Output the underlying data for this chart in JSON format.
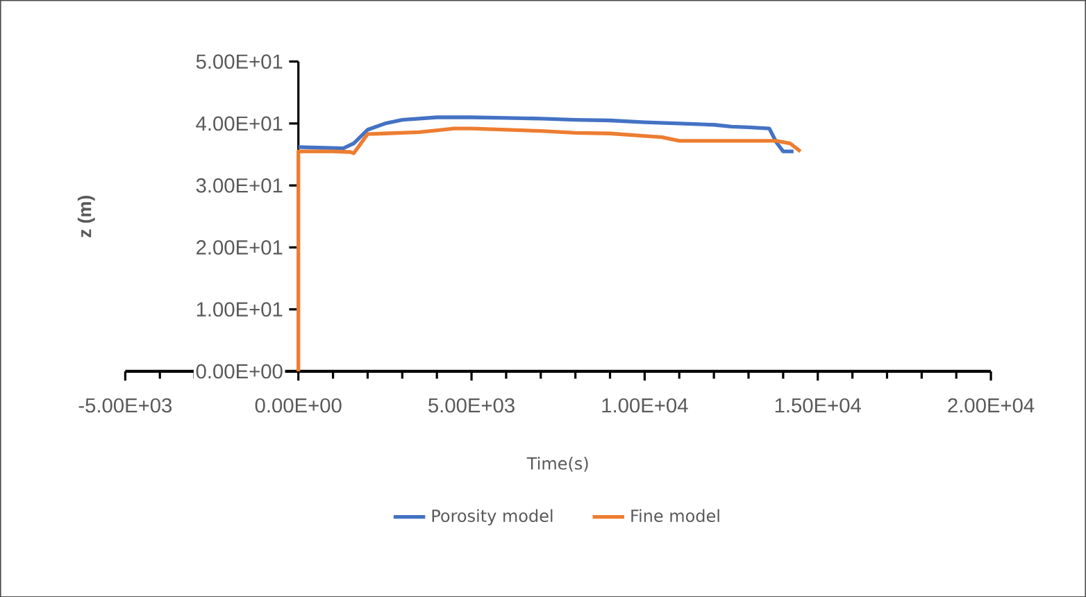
{
  "chart_data": {
    "type": "line",
    "xlabel": "Time(s)",
    "ylabel": "z (m)",
    "xlim": [
      -5000,
      20000
    ],
    "ylim": [
      0,
      50
    ],
    "xticks": [
      {
        "value": -5000,
        "label": "-5.00E+03"
      },
      {
        "value": 0,
        "label": "0.00E+00"
      },
      {
        "value": 5000,
        "label": "5.00E+03"
      },
      {
        "value": 10000,
        "label": "1.00E+04"
      },
      {
        "value": 15000,
        "label": "1.50E+04"
      },
      {
        "value": 20000,
        "label": "2.00E+04"
      }
    ],
    "yticks": [
      {
        "value": 0,
        "label": "0.00E+00"
      },
      {
        "value": 10,
        "label": "1.00E+01"
      },
      {
        "value": 20,
        "label": "2.00E+01"
      },
      {
        "value": 30,
        "label": "3.00E+01"
      },
      {
        "value": 40,
        "label": "4.00E+01"
      },
      {
        "value": 50,
        "label": "5.00E+01"
      }
    ],
    "legend": "bottom",
    "grid": false,
    "marker": "none",
    "line_style": "solid",
    "series": [
      {
        "name": "Porosity model",
        "color": "#4472c4",
        "x": [
          0,
          600,
          1300,
          1600,
          2000,
          2500,
          3000,
          4000,
          5000,
          6000,
          7000,
          8000,
          9000,
          10000,
          11000,
          12000,
          12500,
          13000,
          13600,
          13800,
          14000,
          14300
        ],
        "values": [
          36.2,
          36.1,
          36,
          36.8,
          39,
          40,
          40.6,
          41,
          41,
          40.9,
          40.8,
          40.6,
          40.5,
          40.2,
          40,
          39.8,
          39.5,
          39.4,
          39.2,
          37,
          35.5,
          35.5
        ]
      },
      {
        "name": "Fine model",
        "color": "#ed7d31",
        "x": [
          0,
          0,
          1000,
          1500,
          1600,
          2000,
          2500,
          3500,
          4500,
          5000,
          6000,
          7000,
          8000,
          9000,
          10000,
          10500,
          11000,
          12000,
          13000,
          13800,
          14200,
          14500
        ],
        "values": [
          0,
          35.5,
          35.5,
          35.4,
          35.2,
          38.3,
          38.4,
          38.6,
          39.2,
          39.2,
          39,
          38.8,
          38.5,
          38.4,
          38,
          37.8,
          37.2,
          37.2,
          37.2,
          37.2,
          36.8,
          35.5
        ]
      }
    ]
  }
}
